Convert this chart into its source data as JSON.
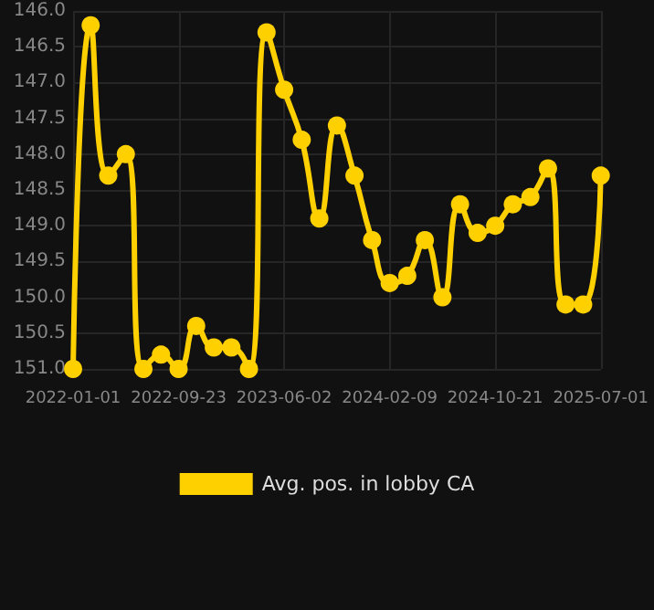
{
  "chart_data": {
    "type": "line",
    "categories": [
      "2022-01-01",
      null,
      null,
      null,
      null,
      null,
      "2022-09-23",
      null,
      null,
      null,
      null,
      null,
      "2023-06-02",
      null,
      null,
      null,
      null,
      null,
      "2024-02-09",
      null,
      null,
      null,
      null,
      null,
      "2024-10-21",
      null,
      null,
      null,
      null,
      null,
      "2025-07-01"
    ],
    "series": [
      {
        "name": "Avg. pos. in lobby CA",
        "color": "#ffd000",
        "values": [
          151.0,
          146.2,
          148.3,
          148.0,
          151.0,
          150.8,
          151.0,
          150.4,
          150.7,
          150.7,
          151.0,
          146.3,
          147.1,
          147.8,
          148.9,
          147.6,
          148.3,
          149.2,
          149.8,
          149.7,
          149.2,
          150.0,
          148.7,
          149.1,
          149.0,
          148.7,
          148.6,
          148.2,
          150.1,
          150.1,
          148.3
        ]
      }
    ],
    "ylim": [
      151,
      146
    ],
    "yticks": [
      {
        "value": 146,
        "label": "146.0"
      },
      {
        "value": 146.5,
        "label": "146.5"
      },
      {
        "value": 147,
        "label": "147.0"
      },
      {
        "value": 147.5,
        "label": "147.5"
      },
      {
        "value": 148,
        "label": "148.0"
      },
      {
        "value": 148.5,
        "label": "148.5"
      },
      {
        "value": 149,
        "label": "149.0"
      },
      {
        "value": 149.5,
        "label": "149.5"
      },
      {
        "value": 150,
        "label": "150.0"
      },
      {
        "value": 150.5,
        "label": "150.5"
      },
      {
        "value": 151,
        "label": "151.0"
      }
    ],
    "grid": true,
    "legend": "bottom",
    "marker": "circle",
    "line_style": "solid"
  }
}
